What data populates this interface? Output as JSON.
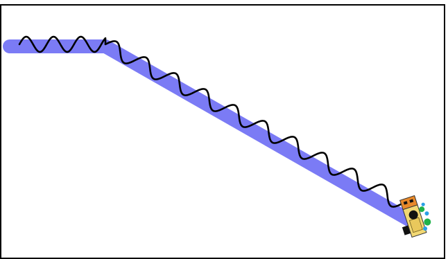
{
  "colors": {
    "stage_background": "#ffffff",
    "stage_border": "#000000",
    "track": "#7b7bf5",
    "trail": "#000000",
    "robot_body": "#f2d873",
    "robot_head": "#e8892a",
    "robot_wheel": "#111111",
    "robot_sensor_green": "#1fb24a",
    "robot_sensor_blue": "#2aa0e6"
  },
  "scene": {
    "track_icon": "thick-line-path",
    "trail_icon": "wavy-line-trail",
    "robot_icon": "line-following-robot-sprite"
  }
}
